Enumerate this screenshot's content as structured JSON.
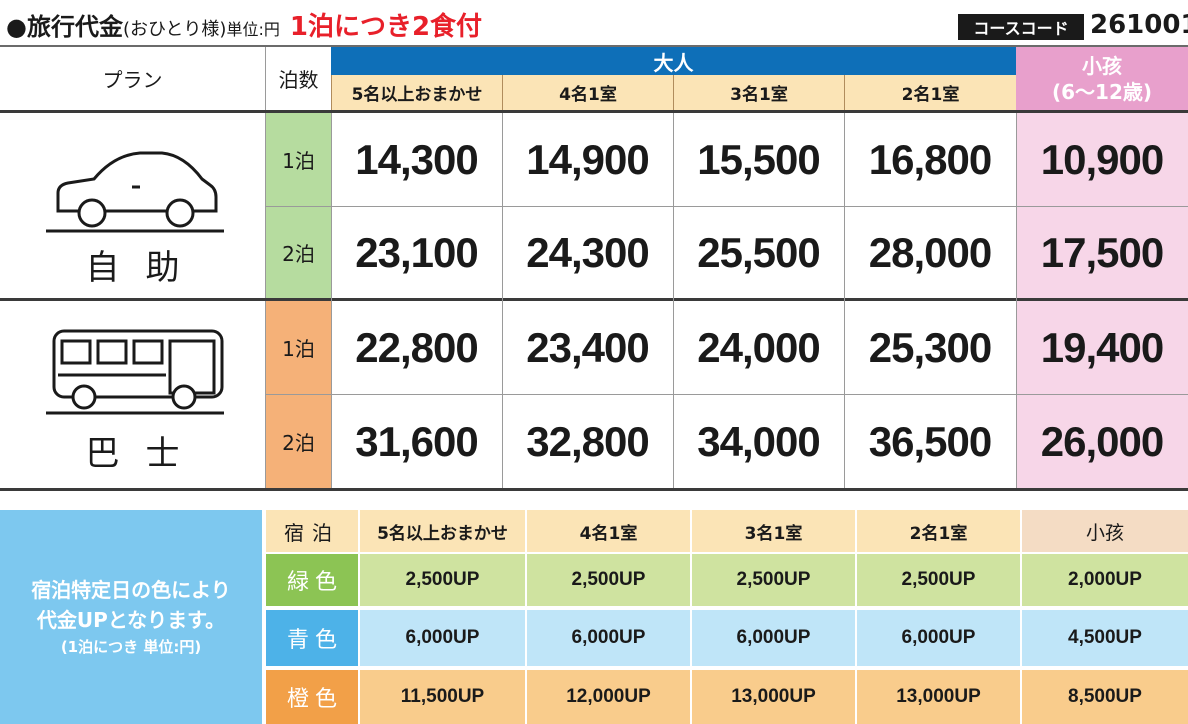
{
  "title": {
    "main": "●旅行代金",
    "sub": "(おひとり様)",
    "unit": "単位:円",
    "meal_note": "1泊につき2食付"
  },
  "course_code": {
    "label": "コースコード",
    "value": "261001"
  },
  "header": {
    "plan": "プラン",
    "nights": "泊数",
    "adult": "大人",
    "child_line1": "小孩",
    "child_line2": "(6～12歳)",
    "columns": [
      "5名以上おまかせ",
      "4名1室",
      "3名1室",
      "2名1室"
    ]
  },
  "plans": [
    {
      "name": "自助",
      "icon": "car-icon",
      "rows": [
        {
          "nights": "1泊",
          "prices": [
            "14,300",
            "14,900",
            "15,500",
            "16,800"
          ],
          "child": "10,900"
        },
        {
          "nights": "2泊",
          "prices": [
            "23,100",
            "24,300",
            "25,500",
            "28,000"
          ],
          "child": "17,500"
        }
      ]
    },
    {
      "name": "巴士",
      "icon": "bus-icon",
      "rows": [
        {
          "nights": "1泊",
          "prices": [
            "22,800",
            "23,400",
            "24,000",
            "25,300"
          ],
          "child": "19,400"
        },
        {
          "nights": "2泊",
          "prices": [
            "31,600",
            "32,800",
            "34,000",
            "36,500"
          ],
          "child": "26,000"
        }
      ]
    }
  ],
  "surcharge": {
    "note_line1": "宿泊特定日の色により",
    "note_line2": "代金UPとなります。",
    "note_line3": "(1泊につき 単位:円)",
    "stay_label": "宿泊",
    "columns": [
      "5名以上おまかせ",
      "4名1室",
      "3名1室",
      "2名1室",
      "小孩"
    ],
    "rows": [
      {
        "label": "緑色",
        "color": "#8cc454",
        "values": [
          "2,500UP",
          "2,500UP",
          "2,500UP",
          "2,500UP",
          "2,000UP"
        ]
      },
      {
        "label": "青色",
        "color": "#4db2e8",
        "values": [
          "6,000UP",
          "6,000UP",
          "6,000UP",
          "6,000UP",
          "4,500UP"
        ]
      },
      {
        "label": "橙色",
        "color": "#f2a048",
        "values": [
          "11,500UP",
          "12,000UP",
          "13,000UP",
          "13,000UP",
          "8,500UP"
        ]
      }
    ]
  },
  "colors": {
    "adult_band": "#0e6fb8",
    "child_header": "#e8a0cc",
    "accent_red": "#e8202a"
  }
}
